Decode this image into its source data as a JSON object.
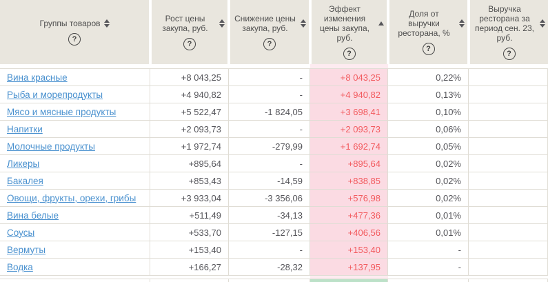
{
  "colors": {
    "header-bg": "#e9e6de",
    "header-text": "#4e4e4e",
    "border": "#e0ddd5",
    "text": "#55555a",
    "link": "#4a91cf",
    "effect-bg": "#fbdbe3",
    "effect-bg-faint": "#fdebf0",
    "effect-text": "#f25a5e",
    "next-effect-bg": "#bce1c8"
  },
  "icons": {
    "help": "?"
  },
  "table": {
    "columns": [
      {
        "label": "Группы товаров",
        "sort": "unsorted"
      },
      {
        "label": "Рост цены закупа, руб.",
        "sort": "unsorted"
      },
      {
        "label": "Снижение цены закупа, руб.",
        "sort": "unsorted"
      },
      {
        "label": "Эффект изменения цены закупа, руб.",
        "sort": "ascending"
      },
      {
        "label": "Доля от выручки ресторана, %",
        "sort": "unsorted"
      },
      {
        "label": "Выручка ресторана за период сен. 23, руб.",
        "sort": "unsorted"
      }
    ],
    "rows": [
      {
        "group": "Вина красные",
        "growth": "+8 043,25",
        "decrease": "-",
        "effect": "+8 043,25",
        "share": "0,22%",
        "revenue": ""
      },
      {
        "group": "Рыба и морепродукты",
        "growth": "+4 940,82",
        "decrease": "-",
        "effect": "+4 940,82",
        "share": "0,13%",
        "revenue": ""
      },
      {
        "group": "Мясо и мясные продукты",
        "growth": "+5 522,47",
        "decrease": "-1 824,05",
        "effect": "+3 698,41",
        "share": "0,10%",
        "revenue": ""
      },
      {
        "group": "Напитки",
        "growth": "+2 093,73",
        "decrease": "-",
        "effect": "+2 093,73",
        "share": "0,06%",
        "revenue": ""
      },
      {
        "group": "Молочные продукты",
        "growth": "+1 972,74",
        "decrease": "-279,99",
        "effect": "+1 692,74",
        "share": "0,05%",
        "revenue": ""
      },
      {
        "group": "Ликеры",
        "growth": "+895,64",
        "decrease": "-",
        "effect": "+895,64",
        "share": "0,02%",
        "revenue": ""
      },
      {
        "group": "Бакалея",
        "growth": "+853,43",
        "decrease": "-14,59",
        "effect": "+838,85",
        "share": "0,02%",
        "revenue": ""
      },
      {
        "group": "Овощи, фрукты, орехи, грибы",
        "growth": "+3 933,04",
        "decrease": "-3 356,06",
        "effect": "+576,98",
        "share": "0,02%",
        "revenue": ""
      },
      {
        "group": "Вина белые",
        "growth": "+511,49",
        "decrease": "-34,13",
        "effect": "+477,36",
        "share": "0,01%",
        "revenue": ""
      },
      {
        "group": "Соусы",
        "growth": "+533,70",
        "decrease": "-127,15",
        "effect": "+406,56",
        "share": "0,01%",
        "revenue": ""
      },
      {
        "group": "Вермуты",
        "growth": "+153,40",
        "decrease": "-",
        "effect": "+153,40",
        "share": "-",
        "revenue": ""
      },
      {
        "group": "Водка",
        "growth": "+166,27",
        "decrease": "-28,32",
        "effect": "+137,95",
        "share": "-",
        "revenue": ""
      }
    ]
  }
}
